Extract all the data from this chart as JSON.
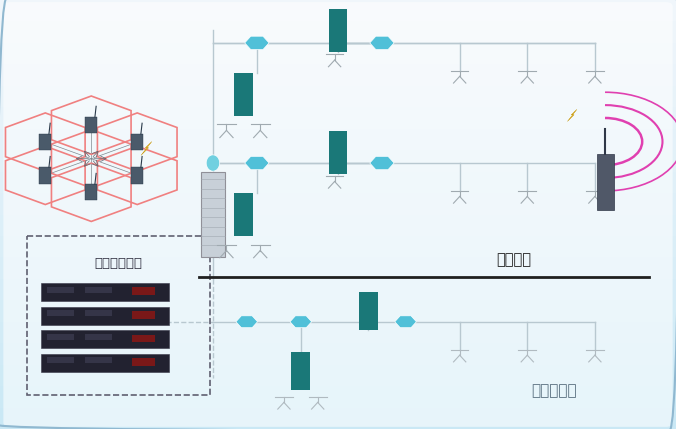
{
  "bg_top": "#f0f6fb",
  "bg_bottom": "#c8e8f5",
  "border_color": "#90b8d0",
  "line_color": "#b8c8d0",
  "teal_color": "#1a7878",
  "cyan_color": "#50c0d8",
  "cyan_coupler": "#70d0e0",
  "divider_color": "#202020",
  "text_divider": "地面高层",
  "text_underground": "多层地下室",
  "text_base": "系统基站中心",
  "hex_color": "#f08080",
  "lightning_color": "#f0c030",
  "wave_color": "#e040b0",
  "antenna_color": "#a0aab0",
  "gray_box_color": "#c8d0d8",
  "server_color": "#252530"
}
